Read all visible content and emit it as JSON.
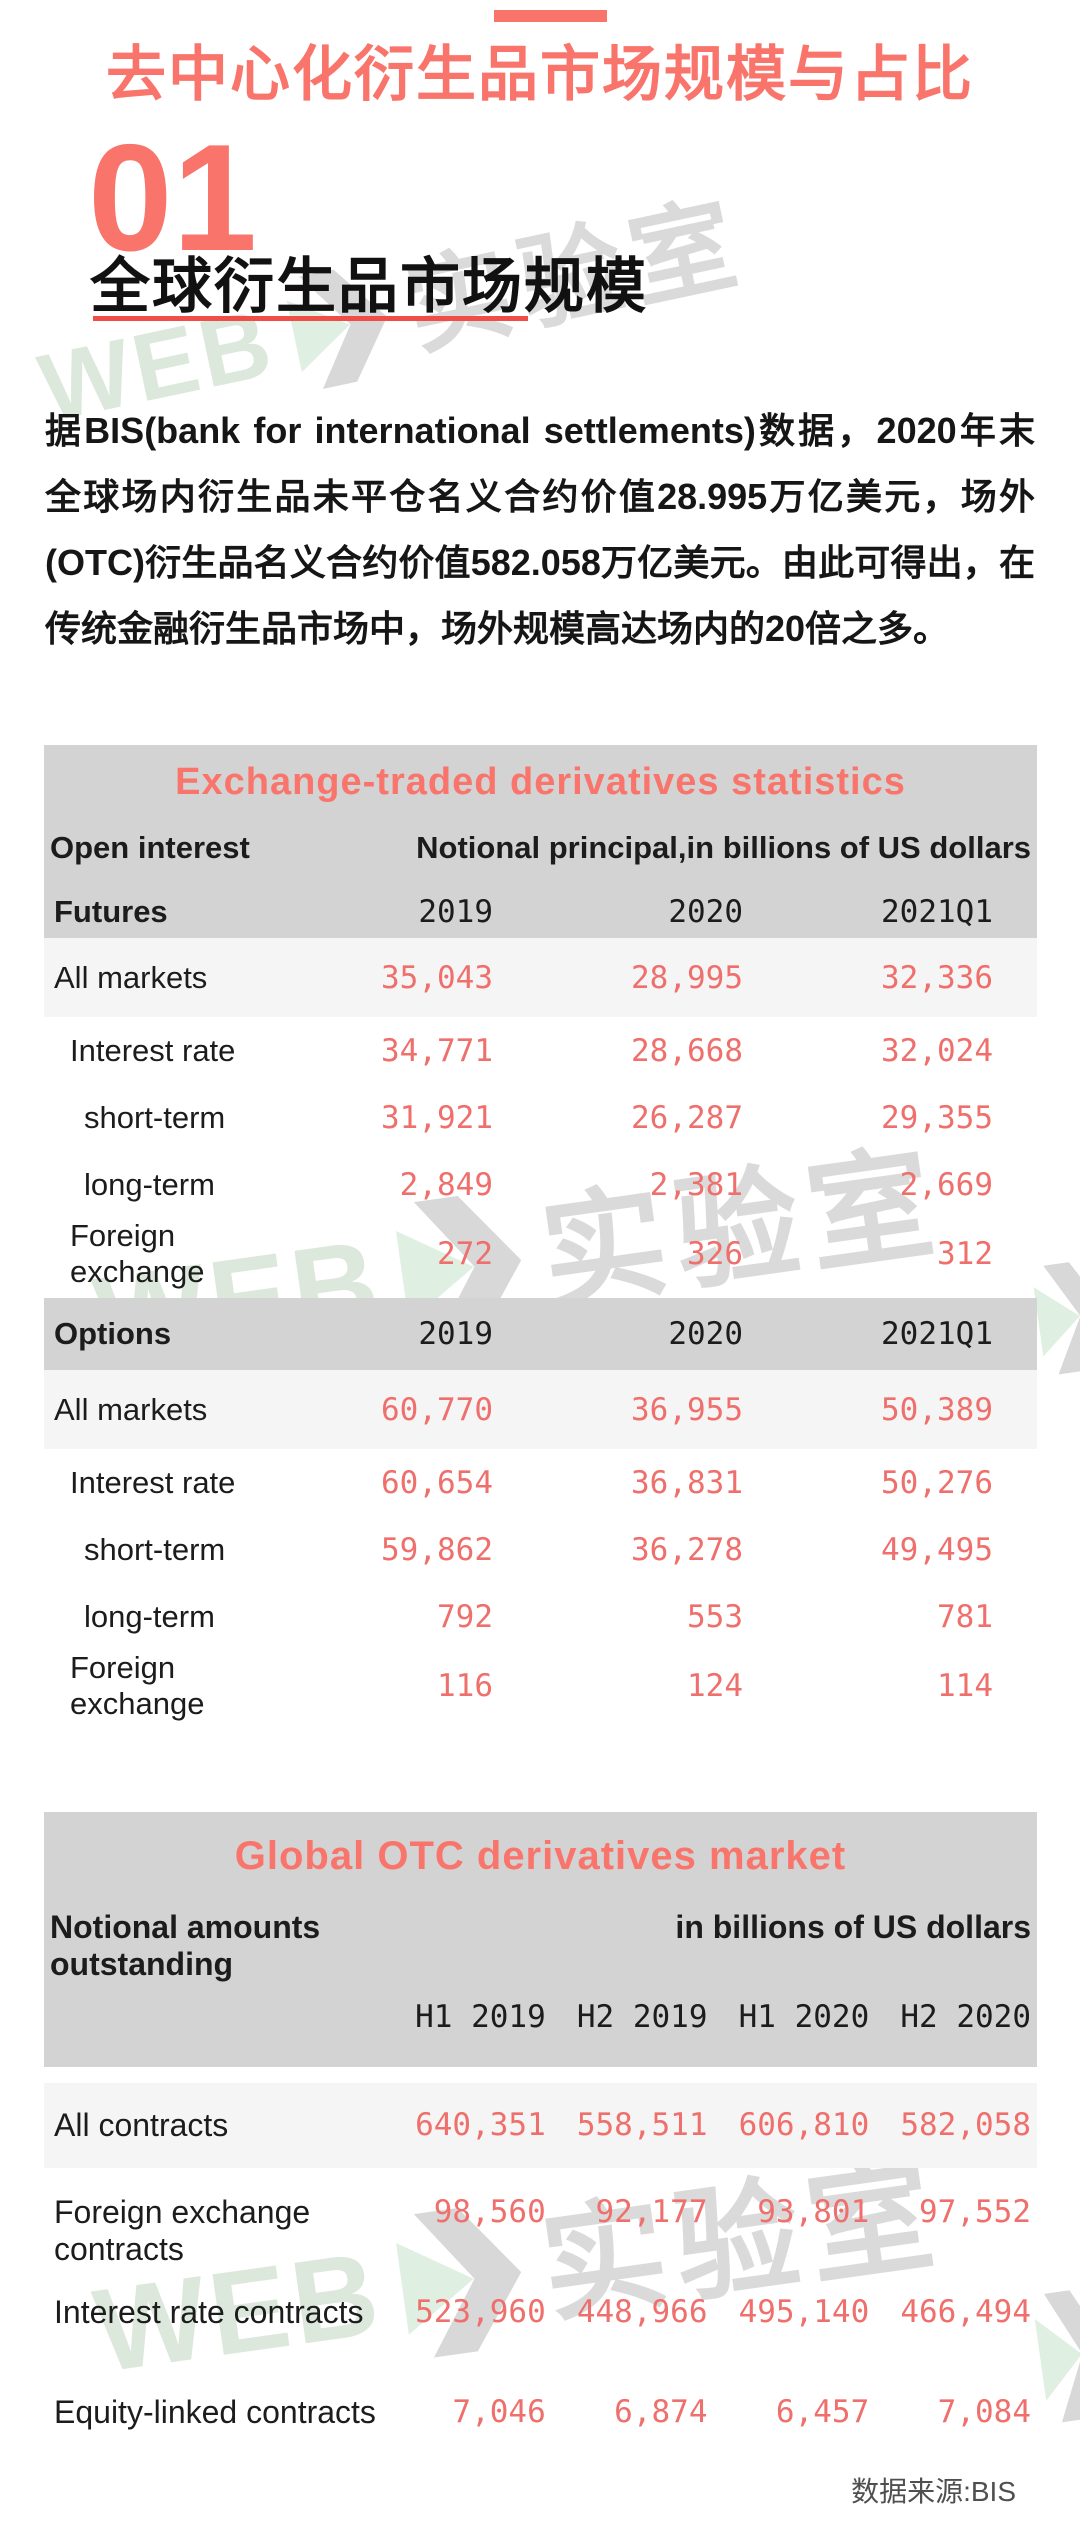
{
  "page": {
    "title": "去中心化衍生品市场规模与占比",
    "section_number": "01",
    "section_heading": "全球衍生品市场规模",
    "paragraph": "据BIS(bank for international settlements)数据，2020年末全球场内衍生品未平仓名义合约价值28.995万亿美元，场外(OTC)衍生品名义合约价值582.058万亿美元。由此可得出，在传统金融衍生品市场中，场外规模高达场内的20倍之多。",
    "source_note": "数据来源:BIS"
  },
  "watermark": {
    "brand": "WEB",
    "label": "实验室"
  },
  "colors": {
    "accent_pink": "#f9756c",
    "number_pink": "#ee6f6b",
    "underline_red": "#ee4e46",
    "header_gray": "#d3d3d3",
    "highlight_row": "#f6f5f5"
  },
  "table1": {
    "title": "Exchange-traded derivatives statistics",
    "subtitle_left": "Open interest",
    "subtitle_right": "Notional principal,in billions of US dollars",
    "sections": [
      {
        "name": "Futures",
        "columns": [
          "2019",
          "2020",
          "2021Q1"
        ],
        "rows": [
          {
            "label": "All markets",
            "indent": 0,
            "highlight": true,
            "values": [
              "35,043",
              "28,995",
              "32,336"
            ]
          },
          {
            "label": "Interest rate",
            "indent": 1,
            "highlight": false,
            "values": [
              "34,771",
              "28,668",
              "32,024"
            ]
          },
          {
            "label": "short-term",
            "indent": 2,
            "highlight": false,
            "values": [
              "31,921",
              "26,287",
              "29,355"
            ]
          },
          {
            "label": "long-term",
            "indent": 2,
            "highlight": false,
            "values": [
              "2,849",
              "2,381",
              "2,669"
            ]
          },
          {
            "label": "Foreign exchange",
            "indent": 1,
            "highlight": false,
            "values": [
              "272",
              "326",
              "312"
            ]
          }
        ]
      },
      {
        "name": "Options",
        "columns": [
          "2019",
          "2020",
          "2021Q1"
        ],
        "rows": [
          {
            "label": "All markets",
            "indent": 0,
            "highlight": true,
            "values": [
              "60,770",
              "36,955",
              "50,389"
            ]
          },
          {
            "label": "Interest rate",
            "indent": 1,
            "highlight": false,
            "values": [
              "60,654",
              "36,831",
              "50,276"
            ]
          },
          {
            "label": "short-term",
            "indent": 2,
            "highlight": false,
            "values": [
              "59,862",
              "36,278",
              "49,495"
            ]
          },
          {
            "label": "long-term",
            "indent": 2,
            "highlight": false,
            "values": [
              "792",
              "553",
              "781"
            ]
          },
          {
            "label": "Foreign exchange",
            "indent": 1,
            "highlight": false,
            "values": [
              "116",
              "124",
              "114"
            ]
          }
        ]
      }
    ]
  },
  "table2": {
    "title": "Global OTC derivatives market",
    "subtitle_left": "Notional amounts outstanding",
    "subtitle_right": "in billions of US dollars",
    "columns": [
      "H1 2019",
      "H2 2019",
      "H1 2020",
      "H2 2020"
    ],
    "rows": [
      {
        "label": "All contracts",
        "highlight": true,
        "values": [
          "640,351",
          "558,511",
          "606,810",
          "582,058"
        ]
      },
      {
        "label": "Foreign exchange contracts",
        "highlight": false,
        "values": [
          "98,560",
          "92,177",
          "93,801",
          "97,552"
        ]
      },
      {
        "label": "Interest rate contracts",
        "highlight": false,
        "values": [
          "523,960",
          "448,966",
          "495,140",
          "466,494"
        ]
      },
      {
        "label": "Equity-linked contracts",
        "highlight": false,
        "values": [
          "7,046",
          "6,874",
          "6,457",
          "7,084"
        ]
      }
    ]
  }
}
